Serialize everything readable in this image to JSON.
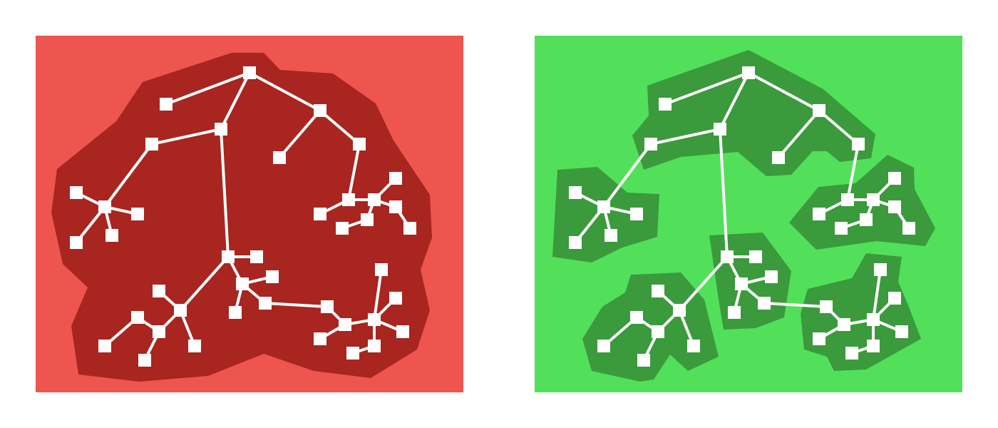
{
  "colors": {
    "background": "#ffffff",
    "left_panel": "#ee554f",
    "left_region": "#a82520",
    "right_panel": "#52e05a",
    "right_region": "#3a9a3c",
    "node": "#ffffff",
    "edge": "#ffffff"
  },
  "panels": [
    {
      "id": "left",
      "variant": "single-enclosing-region",
      "region_count": 1
    },
    {
      "id": "right",
      "variant": "separate-cluster-regions",
      "region_count": 6
    }
  ],
  "tree": {
    "node_count": 42,
    "edge_count": 41
  }
}
